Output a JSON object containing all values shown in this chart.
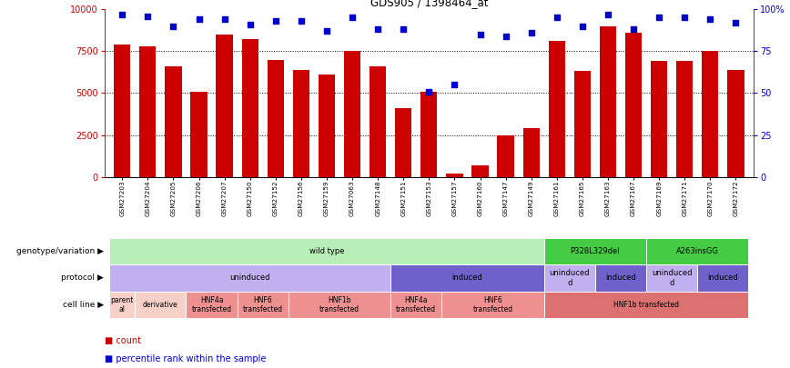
{
  "title": "GDS905 / 1398464_at",
  "samples": [
    "GSM27203",
    "GSM27204",
    "GSM27205",
    "GSM27206",
    "GSM27207",
    "GSM27150",
    "GSM27152",
    "GSM27156",
    "GSM27159",
    "GSM27063",
    "GSM27148",
    "GSM27151",
    "GSM27153",
    "GSM27157",
    "GSM27160",
    "GSM27147",
    "GSM27149",
    "GSM27161",
    "GSM27165",
    "GSM27163",
    "GSM27167",
    "GSM27169",
    "GSM27171",
    "GSM27170",
    "GSM27172"
  ],
  "counts": [
    7900,
    7800,
    6600,
    5100,
    8500,
    8200,
    7000,
    6400,
    6100,
    7500,
    6600,
    4100,
    5100,
    200,
    700,
    2500,
    2900,
    8100,
    6300,
    9000,
    8600,
    6900,
    6900,
    7500,
    6400
  ],
  "percentiles": [
    97,
    96,
    90,
    94,
    94,
    91,
    93,
    93,
    87,
    95,
    88,
    88,
    51,
    55,
    85,
    84,
    86,
    95,
    90,
    97,
    88,
    95,
    95,
    94,
    92
  ],
  "bar_color": "#cc0000",
  "dot_color": "#0000cc",
  "y_max": 10000,
  "y_ticks": [
    0,
    2500,
    5000,
    7500,
    10000
  ],
  "y2_ticks": [
    0,
    25,
    50,
    75,
    100
  ],
  "dotted_lines": [
    2500,
    5000,
    7500
  ],
  "tick_bg_color": "#d8d8d8",
  "genotype_groups": [
    {
      "label": "wild type",
      "start": 0,
      "end": 17,
      "color": "#b8eeb8"
    },
    {
      "label": "P328L329del",
      "start": 17,
      "end": 21,
      "color": "#44cc44"
    },
    {
      "label": "A263insGG",
      "start": 21,
      "end": 25,
      "color": "#44cc44"
    }
  ],
  "protocol_groups": [
    {
      "label": "uninduced",
      "start": 0,
      "end": 11,
      "color": "#c0b0f0"
    },
    {
      "label": "induced",
      "start": 11,
      "end": 17,
      "color": "#7060cc"
    },
    {
      "label": "uninduced\nd",
      "start": 17,
      "end": 19,
      "color": "#c0b0f0"
    },
    {
      "label": "induced",
      "start": 19,
      "end": 21,
      "color": "#7060cc"
    },
    {
      "label": "uninduced\nd",
      "start": 21,
      "end": 23,
      "color": "#c0b0f0"
    },
    {
      "label": "induced",
      "start": 23,
      "end": 25,
      "color": "#7060cc"
    }
  ],
  "cellline_groups": [
    {
      "label": "parent\nal",
      "start": 0,
      "end": 1,
      "color": "#f8d0c8"
    },
    {
      "label": "derivative",
      "start": 1,
      "end": 3,
      "color": "#f8d0c8"
    },
    {
      "label": "HNF4a\ntransfected",
      "start": 3,
      "end": 5,
      "color": "#ee9090"
    },
    {
      "label": "HNF6\ntransfected",
      "start": 5,
      "end": 7,
      "color": "#ee9090"
    },
    {
      "label": "HNF1b\ntransfected",
      "start": 7,
      "end": 11,
      "color": "#ee9090"
    },
    {
      "label": "HNF4a\ntransfected",
      "start": 11,
      "end": 13,
      "color": "#ee9090"
    },
    {
      "label": "HNF6\ntransfected",
      "start": 13,
      "end": 17,
      "color": "#ee9090"
    },
    {
      "label": "HNF1b transfected",
      "start": 17,
      "end": 25,
      "color": "#dd7070"
    }
  ],
  "row_labels": [
    "genotype/variation",
    "protocol",
    "cell line"
  ],
  "legend_count_color": "#cc0000",
  "legend_pct_color": "#0000cc"
}
